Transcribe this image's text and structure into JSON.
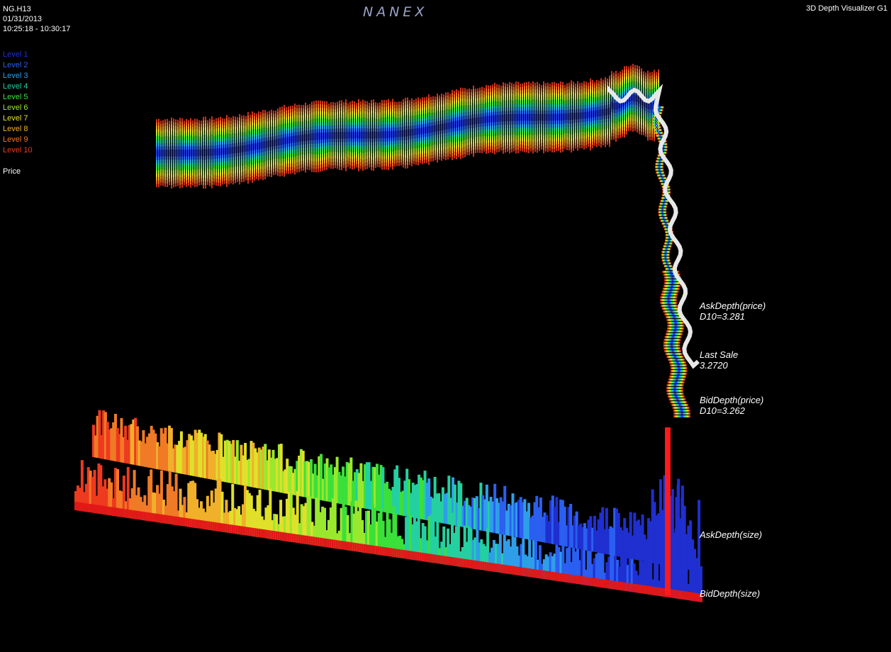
{
  "header": {
    "symbol": "NG.H13",
    "date": "01/31/2013",
    "time_range": "10:25:18 - 10:30:17",
    "brand": "NANEX",
    "app_title": "3D Depth Visualizer G1"
  },
  "legend": {
    "items": [
      {
        "label": "Level 1",
        "color": "#1f2fd0"
      },
      {
        "label": "Level 2",
        "color": "#2a5ff0"
      },
      {
        "label": "Level 3",
        "color": "#2f9ee8"
      },
      {
        "label": "Level 4",
        "color": "#24d0a0"
      },
      {
        "label": "Level 5",
        "color": "#3be03a"
      },
      {
        "label": "Level 6",
        "color": "#9ae82e"
      },
      {
        "label": "Level 7",
        "color": "#e0e02a"
      },
      {
        "label": "Level 8",
        "color": "#f0b02a"
      },
      {
        "label": "Level 9",
        "color": "#f07a26"
      },
      {
        "label": "Level 10",
        "color": "#ee3a1e"
      }
    ],
    "price_label": "Price"
  },
  "chart_data": {
    "type": "3d-depth",
    "series": [
      {
        "name": "AskDepth(price)",
        "last_value": 3.281
      },
      {
        "name": "BidDepth(price)",
        "last_value": 3.262
      },
      {
        "name": "Last Sale",
        "last_value": 3.272
      },
      {
        "name": "AskDepth(size)"
      },
      {
        "name": "BidDepth(size)"
      }
    ],
    "annotations": {
      "ask_price": {
        "line1": "AskDepth(price)",
        "line2": "D10=3.281"
      },
      "last_sale": {
        "line1": "Last Sale",
        "line2": "3.2720"
      },
      "bid_price": {
        "line1": "BidDepth(price)",
        "line2": "D10=3.262"
      },
      "ask_size": "AskDepth(size)",
      "bid_size": "BidDepth(size)"
    }
  }
}
